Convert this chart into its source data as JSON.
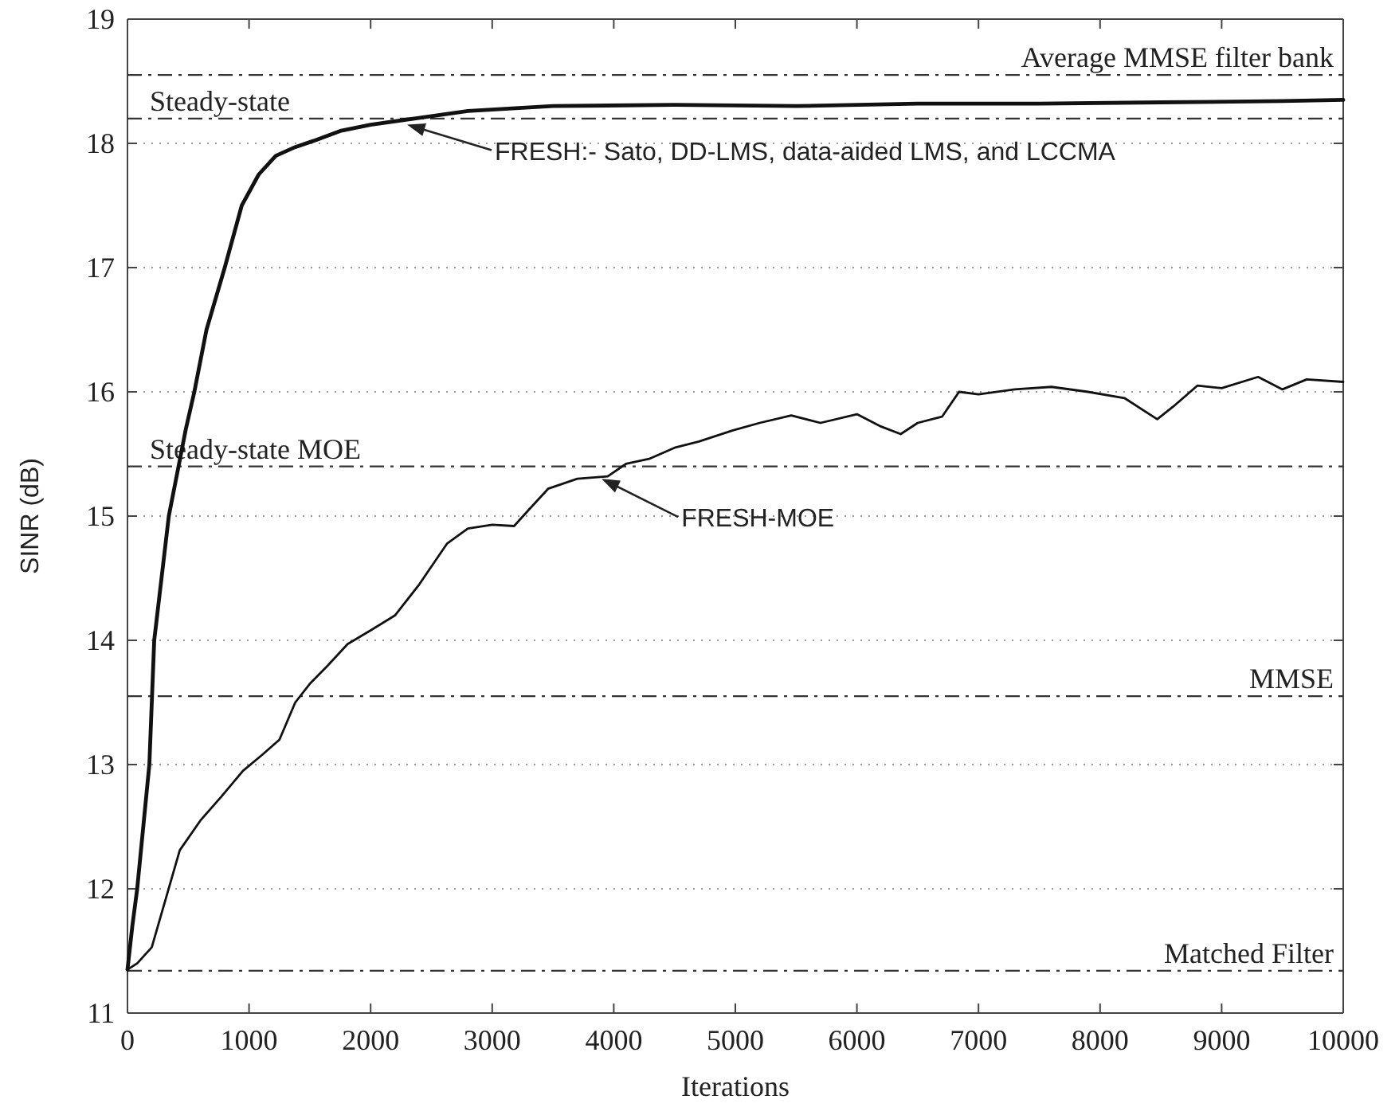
{
  "chart_data": {
    "type": "line",
    "xlabel": "Iterations",
    "ylabel": "SINR (dB)",
    "xlim": [
      0,
      10000
    ],
    "xticks": [
      0,
      1000,
      2000,
      3000,
      4000,
      5000,
      6000,
      7000,
      8000,
      9000,
      10000
    ],
    "ylim": [
      11,
      19
    ],
    "yticks": [
      11,
      12,
      13,
      14,
      15,
      16,
      17,
      18,
      19
    ],
    "grid": "y",
    "series": [
      {
        "color": "#111111",
        "x": [
          0,
          40,
          80,
          130,
          180,
          220,
          280,
          340,
          420,
          480,
          550,
          650,
          800,
          940,
          1080,
          1220,
          1380,
          1530,
          1750,
          2000,
          2360,
          2800,
          3500,
          4500,
          5500,
          6500,
          7500,
          8500,
          9500,
          10000
        ],
        "values": [
          11.35,
          11.7,
          12,
          12.5,
          13,
          14,
          14.5,
          15,
          15.4,
          15.7,
          16,
          16.5,
          17,
          17.5,
          17.75,
          17.9,
          17.97,
          18.02,
          18.1,
          18.15,
          18.2,
          18.26,
          18.3,
          18.31,
          18.3,
          18.32,
          18.32,
          18.33,
          18.34,
          18.35
        ]
      },
      {
        "color": "#111111",
        "x": [
          0,
          80,
          200,
          430,
          600,
          770,
          950,
          1110,
          1250,
          1380,
          1500,
          1650,
          1810,
          2000,
          2200,
          2400,
          2630,
          2800,
          3000,
          3180,
          3300,
          3460,
          3700,
          3950,
          4100,
          4290,
          4500,
          4700,
          4980,
          5200,
          5460,
          5700,
          6000,
          6200,
          6360,
          6500,
          6700,
          6840,
          7000,
          7300,
          7600,
          7900,
          8200,
          8470,
          8600,
          8800,
          9000,
          9300,
          9500,
          9700,
          10000
        ],
        "values": [
          11.35,
          11.4,
          11.53,
          12.31,
          12.55,
          12.74,
          12.95,
          13.08,
          13.2,
          13.5,
          13.65,
          13.8,
          13.97,
          14.08,
          14.2,
          14.45,
          14.78,
          14.9,
          14.93,
          14.92,
          15.05,
          15.22,
          15.3,
          15.32,
          15.42,
          15.46,
          15.55,
          15.6,
          15.69,
          15.75,
          15.81,
          15.75,
          15.82,
          15.72,
          15.66,
          15.75,
          15.8,
          16.0,
          15.98,
          16.02,
          16.04,
          16.0,
          15.95,
          15.78,
          15.88,
          16.05,
          16.03,
          16.12,
          16.02,
          16.1,
          16.08
        ]
      }
    ],
    "ref_lines": [
      {
        "axis": "y",
        "value": 18.55,
        "label": "Average MMSE filter bank",
        "line_style": "dashdot"
      },
      {
        "axis": "y",
        "value": 18.2,
        "label": "Steady-state",
        "line_style": "dashdot"
      },
      {
        "axis": "y",
        "value": 15.4,
        "label": "Steady-state MOE",
        "line_style": "dashdot"
      },
      {
        "axis": "y",
        "value": 13.55,
        "label": "MMSE",
        "line_style": "dashdot"
      },
      {
        "axis": "y",
        "value": 11.34,
        "label": "Matched Filter",
        "line_style": "dashdot"
      }
    ],
    "annotations": [
      {
        "text": "FRESH:- Sato, DD-LMS, data-aided LMS, and LCCMA",
        "x": 2300,
        "y": 18.15
      },
      {
        "text": "FRESH-MOE",
        "x": 3900,
        "y": 15.3
      }
    ]
  }
}
